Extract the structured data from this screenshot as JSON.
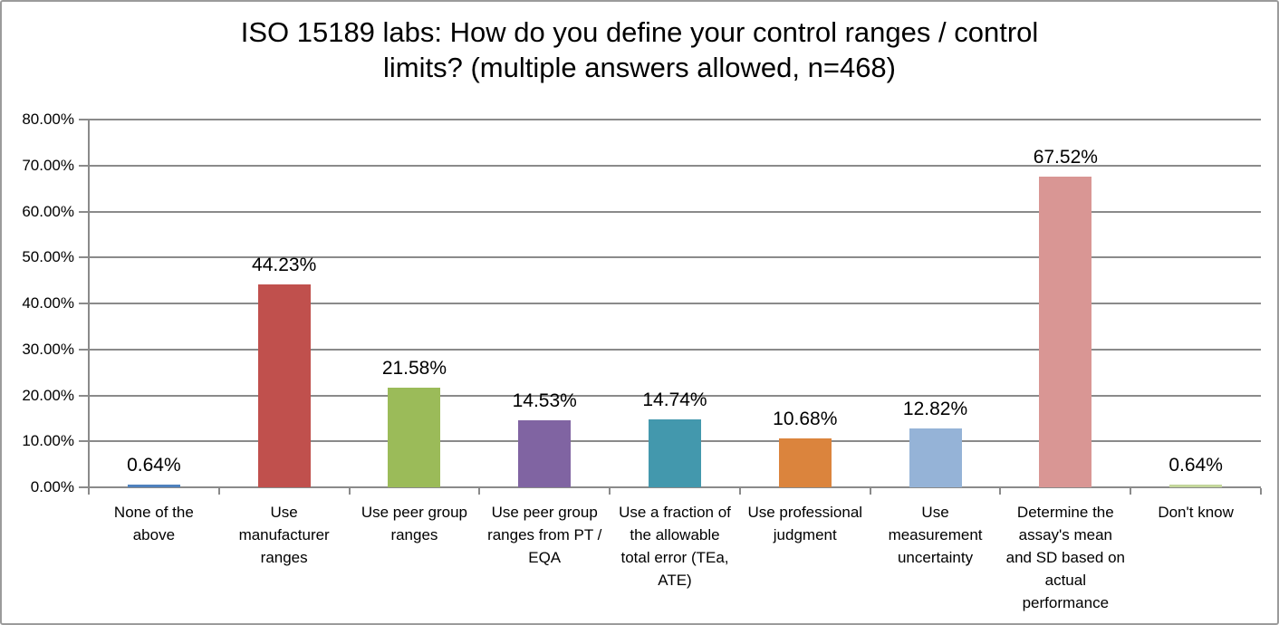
{
  "frame": {
    "background": "#FFFFFF",
    "border_color": "#9B9B9B"
  },
  "chart_data": {
    "type": "bar",
    "title": "ISO 15189 labs: How do you define your control ranges / control limits? (multiple answers allowed, n=468)",
    "title_display": "ISO 15189 labs: How do you define your control ranges / control\nlimits? (multiple answers allowed, n=468)",
    "categories": [
      "None of the above",
      "Use manufacturer ranges",
      "Use peer group ranges",
      "Use peer group ranges from PT / EQA",
      "Use a fraction of the allowable total error (TEa, ATE)",
      "Use professional judgment",
      "Use measurement uncertainty",
      "Determine the assay's mean and SD based on actual performance",
      "Don't know"
    ],
    "categories_wrapped": [
      "None of the\nabove",
      "Use\nmanufacturer\nranges",
      "Use peer group\nranges",
      "Use peer group\nranges from PT /\nEQA",
      "Use a fraction of\nthe allowable\ntotal error (TEa,\nATE)",
      "Use professional\njudgment",
      "Use\nmeasurement\nuncertainty",
      "Determine the\nassay's mean\nand SD based on\nactual\nperformance",
      "Don't know"
    ],
    "values": [
      0.64,
      44.23,
      21.58,
      14.53,
      14.74,
      10.68,
      12.82,
      67.52,
      0.64
    ],
    "data_labels": [
      "0.64%",
      "44.23%",
      "21.58%",
      "14.53%",
      "14.74%",
      "10.68%",
      "12.82%",
      "67.52%",
      "0.64%"
    ],
    "bar_colors": [
      "#4F81BD",
      "#C0504D",
      "#9BBB59",
      "#8064A2",
      "#4398AD",
      "#DB843D",
      "#95B3D7",
      "#D99694",
      "#C3D69B"
    ],
    "xlabel": "",
    "ylabel": "",
    "ylim": [
      0,
      80
    ],
    "ytick_step": 10,
    "ytick_labels": [
      "0.00%",
      "10.00%",
      "20.00%",
      "30.00%",
      "40.00%",
      "50.00%",
      "60.00%",
      "70.00%",
      "80.00%"
    ],
    "grid": true,
    "legend": "none",
    "gridline_color": "#8A8A8A",
    "axis_color": "#8A8A8A",
    "text_color": "#000000"
  }
}
